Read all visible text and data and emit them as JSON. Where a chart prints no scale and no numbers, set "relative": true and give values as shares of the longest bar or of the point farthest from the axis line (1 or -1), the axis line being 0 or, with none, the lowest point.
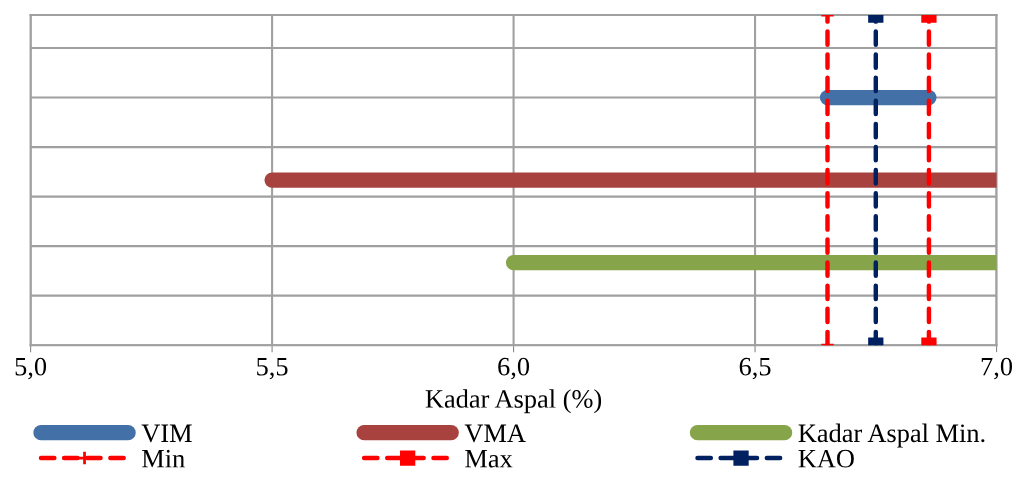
{
  "chart_data": {
    "type": "line",
    "relative": true,
    "xlabel": "Kadar Aspal (%)",
    "xlim": [
      5.0,
      7.0
    ],
    "xticks": [
      {
        "value": 5.0,
        "label": "5,0"
      },
      {
        "value": 5.5,
        "label": "5,5"
      },
      {
        "value": 6.0,
        "label": "6,0"
      },
      {
        "value": 6.5,
        "label": "6,5"
      },
      {
        "value": 7.0,
        "label": "7,0"
      }
    ],
    "tick_labels": "x",
    "grid": true,
    "legend": "bottom",
    "series": [
      {
        "name": "VIM",
        "color": "#4470a8",
        "x": [
          6.65,
          6.86
        ],
        "values": [
          0.75,
          0.75
        ],
        "line_style": "solid",
        "marker": "none"
      },
      {
        "name": "VMA",
        "color": "#a8423f",
        "x": [
          5.5,
          7.0
        ],
        "values": [
          0.5,
          0.5
        ],
        "line_style": "solid",
        "marker": "none"
      },
      {
        "name": "Kadar Aspal Min.",
        "color": "#86a44a",
        "x": [
          6.0,
          7.0
        ],
        "values": [
          0.25,
          0.25
        ],
        "line_style": "solid",
        "marker": "none"
      },
      {
        "name": "Min",
        "color": "#ff0000",
        "x": [
          6.65,
          6.65
        ],
        "values": [
          0,
          1
        ],
        "line_style": "dashed",
        "marker": "cross"
      },
      {
        "name": "Max",
        "color": "#ff0000",
        "x": [
          6.86,
          6.86
        ],
        "values": [
          0,
          1
        ],
        "line_style": "dashed",
        "marker": "square"
      },
      {
        "name": "KAO",
        "color": "#002060",
        "x": [
          6.75,
          6.75
        ],
        "values": [
          0,
          1
        ],
        "line_style": "dashed",
        "marker": "square"
      }
    ]
  }
}
